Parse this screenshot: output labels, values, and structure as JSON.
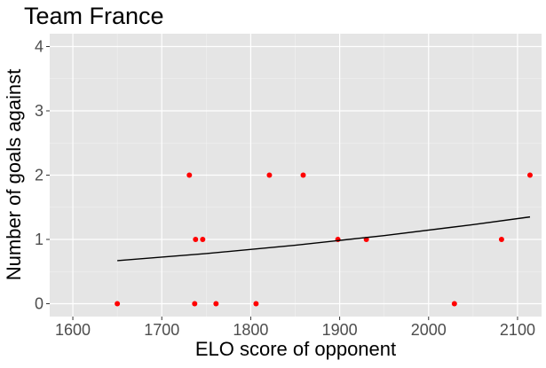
{
  "chart_data": {
    "type": "scatter",
    "title": "Team France",
    "x_label": "ELO score of opponent",
    "y_label": "Number of goals against",
    "series": [
      {
        "name": "matches",
        "color": "#ff0000",
        "x": [
          1650,
          1731,
          1738,
          1746,
          1737,
          1761,
          1806,
          1821,
          1859,
          1898,
          1930,
          2029,
          2082,
          2114
        ],
        "values": [
          0,
          2,
          1,
          1,
          0,
          0,
          0,
          2,
          2,
          1,
          1,
          0,
          1,
          2
        ]
      },
      {
        "name": "fit",
        "color": "#000000",
        "x": [
          1650,
          1750,
          1850,
          1950,
          2050,
          2114
        ],
        "values": [
          0.67,
          0.78,
          0.91,
          1.06,
          1.23,
          1.35
        ]
      }
    ],
    "xlim": [
      1574,
      2127
    ],
    "xticks": [
      1600,
      1700,
      1800,
      1900,
      2000,
      2100
    ],
    "ylim": [
      -0.2,
      4.2
    ],
    "yticks": [
      0,
      1,
      2,
      3,
      4
    ],
    "grid": true
  }
}
